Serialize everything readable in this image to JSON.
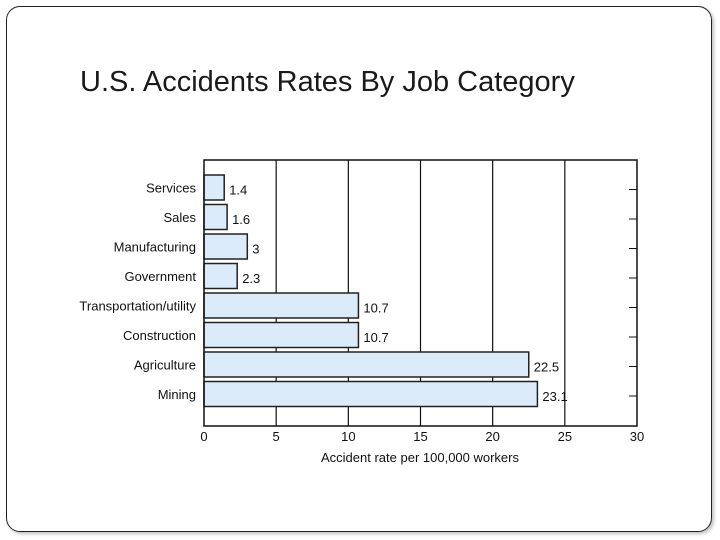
{
  "slide": {
    "title": "U.S. Accidents Rates By Job Category"
  },
  "chart_data": {
    "type": "bar",
    "orientation": "horizontal",
    "title": "U.S. Accidents Rates By Job Category",
    "xlabel": "Accident rate per 100,000 workers",
    "ylabel": "",
    "categories": [
      "Services",
      "Sales",
      "Manufacturing",
      "Government",
      "Transportation/utility",
      "Construction",
      "Agriculture",
      "Mining"
    ],
    "values": [
      1.4,
      1.6,
      3,
      2.3,
      10.7,
      10.7,
      22.5,
      23.1
    ],
    "value_labels": [
      "1.4",
      "1.6",
      "3",
      "2.3",
      "10.7",
      "10.7",
      "22.5",
      "23.1"
    ],
    "xlim": [
      0,
      30
    ],
    "xticks": [
      0,
      5,
      10,
      15,
      20,
      25,
      30
    ],
    "grid": true,
    "bar_color": "#dcebf9",
    "bar_edge_color": "#222222"
  }
}
